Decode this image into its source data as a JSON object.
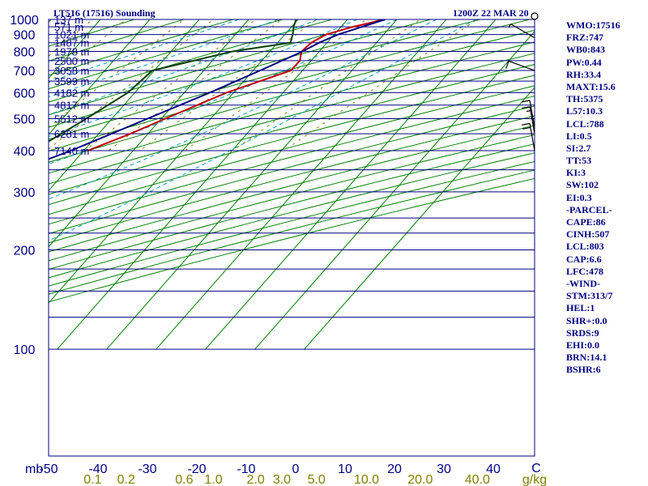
{
  "header": {
    "station": "LT516 (17516) Sounding",
    "time": "1200Z 22 MAR 20"
  },
  "stats": [
    "WMO:17516",
    "FRZ:747",
    "WB0:843",
    "PW:0.44",
    "RH:33.4",
    "MAXT:15.6",
    "TH:5375",
    "L57:10.3",
    "LCL:788",
    "LI:0.5",
    "SI:2.7",
    "TT:53",
    "KI:3",
    "SW:102",
    "EI:0.3",
    "-PARCEL-",
    "CAPE:86",
    "CINH:507",
    "LCL:803",
    "CAP:6.6",
    "LFC:478",
    "-WIND-",
    "STM:313/7",
    "HEL:1",
    "SHR+:0.0",
    "SRDS:9",
    "EHI:0.0",
    "BRN:14.1",
    "BSHR:6"
  ],
  "colors": {
    "frame": "#000080",
    "isobar": "#000080",
    "isotherm": "#008000",
    "dry_adiabat": "#008000",
    "moist_adiabat": "#00a0c0",
    "mixing_ratio": "#808000",
    "temperature": "#c00000",
    "dewpoint": "#004000",
    "virtual_temperature": "#000080",
    "wind": "#000000"
  },
  "chart_data": {
    "type": "skew-t log-p sounding",
    "pressure_axis": {
      "label": "mb",
      "ylim": [
        1050,
        100
      ],
      "scale": "log",
      "ticks": [
        1000,
        900,
        800,
        700,
        600,
        500,
        400,
        300,
        200,
        100
      ]
    },
    "temperature_axis": {
      "unit": "C",
      "xlim": [
        -50,
        48
      ],
      "ticks": [
        -50,
        -40,
        -30,
        -20,
        -10,
        0,
        10,
        20,
        30,
        40
      ]
    },
    "mixing_ratio_axis": {
      "unit": "g/kg",
      "ticks": [
        "0.1",
        "0.2",
        "0.6",
        "1.0",
        "2.0",
        "3.0",
        "5.0",
        "10.0",
        "20.0",
        "40.0"
      ]
    },
    "height_labels": [
      {
        "p": 1000,
        "label": "137 m"
      },
      {
        "p": 950,
        "label": "571 m"
      },
      {
        "p": 900,
        "label": "1021 m"
      },
      {
        "p": 850,
        "label": "1487 m"
      },
      {
        "p": 800,
        "label": "1978 m"
      },
      {
        "p": 750,
        "label": "2500 m"
      },
      {
        "p": 700,
        "label": "3058 m"
      },
      {
        "p": 650,
        "label": "3599 m"
      },
      {
        "p": 600,
        "label": "4182 m"
      },
      {
        "p": 550,
        "label": "4817 m"
      },
      {
        "p": 500,
        "label": "5512 m"
      },
      {
        "p": 450,
        "label": "6281 m"
      },
      {
        "p": 400,
        "label": "7140 m"
      }
    ],
    "series": [
      {
        "name": "temperature",
        "points": [
          [
            1000,
            17.6
          ],
          [
            950,
            12.4
          ],
          [
            900,
            8.4
          ],
          [
            850,
            6.8
          ],
          [
            800,
            6.4
          ],
          [
            750,
            7.7
          ],
          [
            700,
            7.6
          ],
          [
            600,
            -1.4
          ],
          [
            500,
            -9.2
          ],
          [
            450,
            -13.6
          ],
          [
            400,
            -19.2
          ]
        ]
      },
      {
        "name": "dewpoint",
        "points": [
          [
            1000,
            -0.4
          ],
          [
            950,
            0.4
          ],
          [
            900,
            1.6
          ],
          [
            850,
            2.6
          ],
          [
            800,
            -7.6
          ],
          [
            700,
            -20.4
          ],
          [
            600,
            -21.4
          ],
          [
            500,
            -25.2
          ],
          [
            400,
            -30.2
          ]
        ]
      },
      {
        "name": "parcel",
        "points": [
          [
            1000,
            17.6
          ],
          [
            900,
            10.8
          ],
          [
            850,
            8.4
          ],
          [
            800,
            6.6
          ],
          [
            700,
            1.4
          ],
          [
            600,
            -4.8
          ],
          [
            500,
            -12.8
          ],
          [
            400,
            -22.6
          ],
          [
            300,
            -37.6
          ],
          [
            200,
            -59.6
          ],
          [
            150,
            -75.5
          ],
          [
            100,
            -98.0
          ]
        ]
      }
    ],
    "wind_barbs": [
      {
        "p": 400,
        "dir": 350,
        "spd": 20
      },
      {
        "p": 450,
        "dir": 350,
        "spd": 15
      },
      {
        "p": 470,
        "dir": 350,
        "spd": 10
      },
      {
        "p": 700,
        "dir": 290,
        "spd": 10
      },
      {
        "p": 880,
        "dir": 300,
        "spd": 5
      },
      {
        "p": 1000,
        "dir": 0,
        "spd": 0
      }
    ]
  }
}
